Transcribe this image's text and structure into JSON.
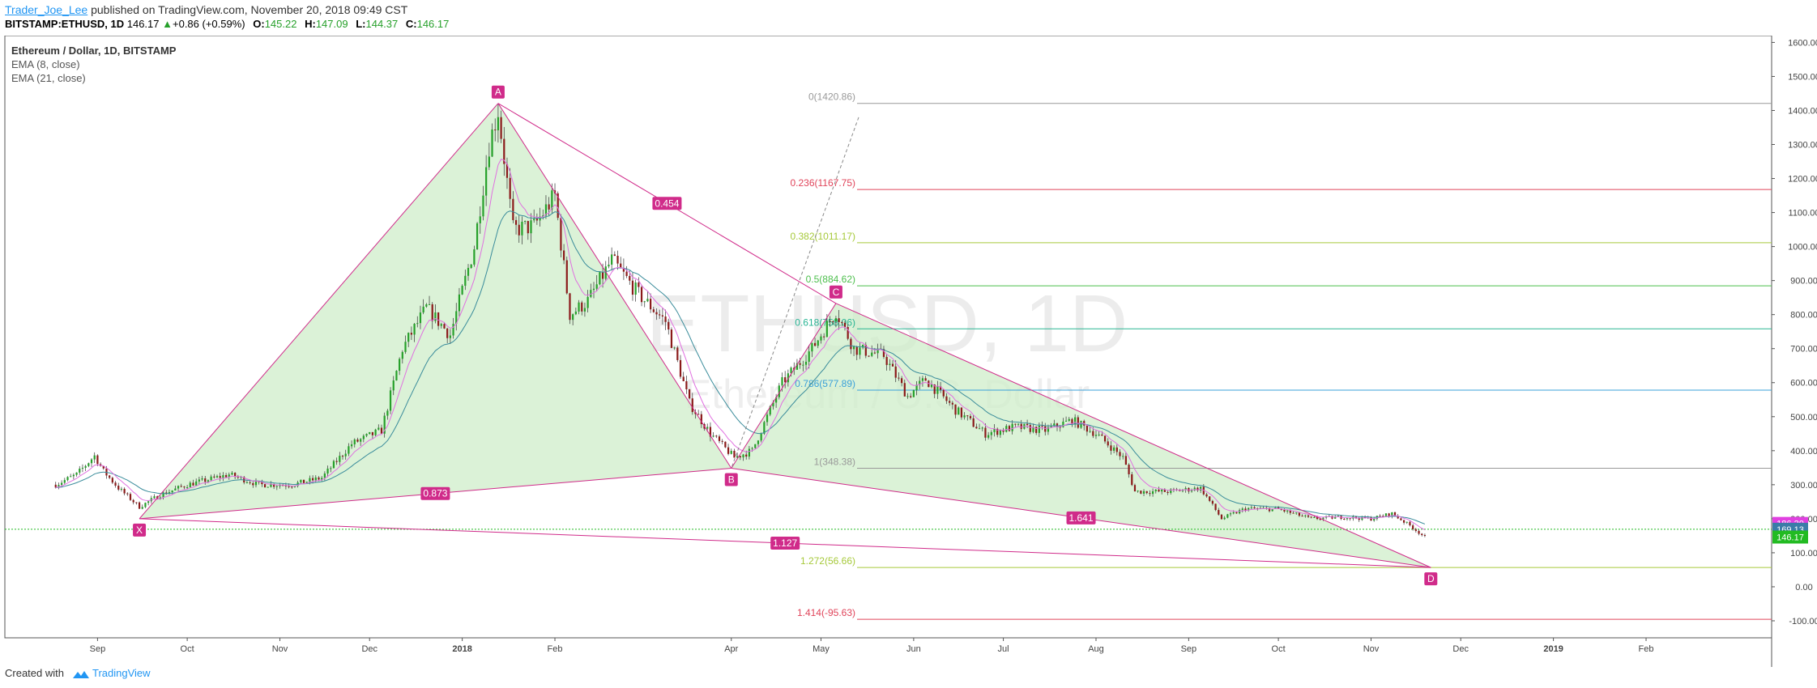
{
  "header": {
    "author": "Trader_Joe_Lee",
    "published_text": "published on TradingView.com, November 20, 2018 09:49 CST",
    "symbol": "BITSTAMP:ETHUSD, 1D",
    "last": "146.17",
    "change": "+0.86 (+0.59%)",
    "o_label": "O:",
    "o_value": "145.22",
    "h_label": "H:",
    "h_value": "147.09",
    "l_label": "L:",
    "l_value": "144.37",
    "c_label": "C:",
    "c_value": "146.17"
  },
  "legend": {
    "symbol": "Ethereum / Dollar, 1D, BITSTAMP",
    "ema8": "EMA (8, close)",
    "ema21": "EMA (21, close)"
  },
  "watermark": {
    "line1": "ETHUSD, 1D",
    "line2": "Ethereum / U.S. Dollar"
  },
  "footer": {
    "created_with": "Created with",
    "brand": "TradingView"
  },
  "colors": {
    "pattern_fill": "#cfeec9",
    "pattern_line": "#d02b8a",
    "candle_up": "#26a02a",
    "candle_down": "#8b1a1a",
    "ema8": "#e070e0",
    "ema21": "#3a8c9b"
  },
  "chart_data": {
    "type": "candlestick",
    "y_axis": {
      "ylim": [
        -150,
        1620
      ],
      "ticks": [
        "1600.00",
        "1500.00",
        "1400.00",
        "1300.00",
        "1200.00",
        "1100.00",
        "1000.00",
        "900.00",
        "800.00",
        "700.00",
        "600.00",
        "500.00",
        "400.00",
        "300.00",
        "200.00",
        "100.00",
        "0.00",
        "-100.00"
      ],
      "tick_values": [
        1600,
        1500,
        1400,
        1300,
        1200,
        1100,
        1000,
        900,
        800,
        700,
        600,
        500,
        400,
        300,
        200,
        100,
        0,
        -100
      ]
    },
    "x_axis": {
      "range": [
        "2017-08-01",
        "2019-03-15"
      ],
      "ticks": [
        {
          "date": "2017-09-01",
          "label": "Sep",
          "bold": false
        },
        {
          "date": "2017-10-01",
          "label": "Oct",
          "bold": false
        },
        {
          "date": "2017-11-01",
          "label": "Nov",
          "bold": false
        },
        {
          "date": "2017-12-01",
          "label": "Dec",
          "bold": false
        },
        {
          "date": "2018-01-01",
          "label": "2018",
          "bold": true
        },
        {
          "date": "2018-02-01",
          "label": "Feb",
          "bold": false
        },
        {
          "date": "2018-04-01",
          "label": "Apr",
          "bold": false
        },
        {
          "date": "2018-05-01",
          "label": "May",
          "bold": false
        },
        {
          "date": "2018-06-01",
          "label": "Jun",
          "bold": false
        },
        {
          "date": "2018-07-01",
          "label": "Jul",
          "bold": false
        },
        {
          "date": "2018-08-01",
          "label": "Aug",
          "bold": false
        },
        {
          "date": "2018-09-01",
          "label": "Sep",
          "bold": false
        },
        {
          "date": "2018-10-01",
          "label": "Oct",
          "bold": false
        },
        {
          "date": "2018-11-01",
          "label": "Nov",
          "bold": false
        },
        {
          "date": "2018-12-01",
          "label": "Dec",
          "bold": false
        },
        {
          "date": "2019-01-01",
          "label": "2019",
          "bold": true
        },
        {
          "date": "2019-02-01",
          "label": "Feb",
          "bold": false
        }
      ]
    },
    "price_path": [
      [
        "2017-08-18",
        300
      ],
      [
        "2017-08-25",
        330
      ],
      [
        "2017-08-31",
        385
      ],
      [
        "2017-09-03",
        340
      ],
      [
        "2017-09-08",
        290
      ],
      [
        "2017-09-15",
        235
      ],
      [
        "2017-09-22",
        270
      ],
      [
        "2017-10-01",
        300
      ],
      [
        "2017-10-15",
        330
      ],
      [
        "2017-10-25",
        300
      ],
      [
        "2017-11-05",
        300
      ],
      [
        "2017-11-15",
        320
      ],
      [
        "2017-11-25",
        420
      ],
      [
        "2017-12-05",
        460
      ],
      [
        "2017-12-12",
        700
      ],
      [
        "2017-12-20",
        820
      ],
      [
        "2017-12-28",
        740
      ],
      [
        "2018-01-05",
        1000
      ],
      [
        "2018-01-10",
        1300
      ],
      [
        "2018-01-13",
        1400
      ],
      [
        "2018-01-18",
        1050
      ],
      [
        "2018-01-25",
        1060
      ],
      [
        "2018-02-01",
        1150
      ],
      [
        "2018-02-06",
        800
      ],
      [
        "2018-02-12",
        840
      ],
      [
        "2018-02-20",
        960
      ],
      [
        "2018-03-01",
        860
      ],
      [
        "2018-03-10",
        780
      ],
      [
        "2018-03-18",
        540
      ],
      [
        "2018-03-25",
        450
      ],
      [
        "2018-04-02",
        380
      ],
      [
        "2018-04-08",
        400
      ],
      [
        "2018-04-18",
        600
      ],
      [
        "2018-04-28",
        700
      ],
      [
        "2018-05-06",
        810
      ],
      [
        "2018-05-12",
        700
      ],
      [
        "2018-05-22",
        680
      ],
      [
        "2018-05-30",
        560
      ],
      [
        "2018-06-05",
        610
      ],
      [
        "2018-06-15",
        520
      ],
      [
        "2018-06-25",
        450
      ],
      [
        "2018-07-05",
        470
      ],
      [
        "2018-07-15",
        460
      ],
      [
        "2018-07-24",
        490
      ],
      [
        "2018-08-01",
        450
      ],
      [
        "2018-08-10",
        380
      ],
      [
        "2018-08-14",
        280
      ],
      [
        "2018-08-25",
        280
      ],
      [
        "2018-09-05",
        290
      ],
      [
        "2018-09-12",
        200
      ],
      [
        "2018-09-20",
        230
      ],
      [
        "2018-10-01",
        228
      ],
      [
        "2018-10-12",
        200
      ],
      [
        "2018-10-22",
        205
      ],
      [
        "2018-11-01",
        200
      ],
      [
        "2018-11-08",
        215
      ],
      [
        "2018-11-14",
        180
      ],
      [
        "2018-11-19",
        146
      ]
    ],
    "horizontal_line": 169.13,
    "price_labels": [
      {
        "value": "186.30",
        "color": "#e040e0"
      },
      {
        "value": "169.13",
        "color": "#3a7ca8"
      },
      {
        "value": "146.17",
        "color": "#22bb22"
      }
    ],
    "harmonic_points": [
      {
        "label": "X",
        "date": "2017-09-15",
        "price": 200
      },
      {
        "label": "A",
        "date": "2018-01-13",
        "price": 1420.86
      },
      {
        "label": "B",
        "date": "2018-04-01",
        "price": 348.38
      },
      {
        "label": "C",
        "date": "2018-05-06",
        "price": 833
      },
      {
        "label": "D",
        "date": "2018-11-21",
        "price": 56.66
      }
    ],
    "ratios": [
      {
        "label": "0.454",
        "from": "A",
        "to": "C"
      },
      {
        "label": "0.873",
        "from": "X",
        "to": "B"
      },
      {
        "label": "1.641",
        "from": "B",
        "to": "D"
      },
      {
        "label": "1.127",
        "from": "X",
        "to": "D"
      }
    ],
    "fib_levels": [
      {
        "label": "0(1420.86)",
        "price": 1420.86,
        "color": "#999999"
      },
      {
        "label": "0.236(1167.75)",
        "price": 1167.75,
        "color": "#e0445a"
      },
      {
        "label": "0.382(1011.17)",
        "price": 1011.17,
        "color": "#a6c93a"
      },
      {
        "label": "0.5(884.62)",
        "price": 884.62,
        "color": "#4cbf4c"
      },
      {
        "label": "0.618(758.06)",
        "price": 758.06,
        "color": "#2ab594"
      },
      {
        "label": "0.786(577.89)",
        "price": 577.89,
        "color": "#3aa0d8"
      },
      {
        "label": "1(348.38)",
        "price": 348.38,
        "color": "#999999"
      },
      {
        "label": "1.272(56.66)",
        "price": 56.66,
        "color": "#a6c93a"
      },
      {
        "label": "1.414(-95.63)",
        "price": -95.63,
        "color": "#e0445a"
      }
    ]
  }
}
